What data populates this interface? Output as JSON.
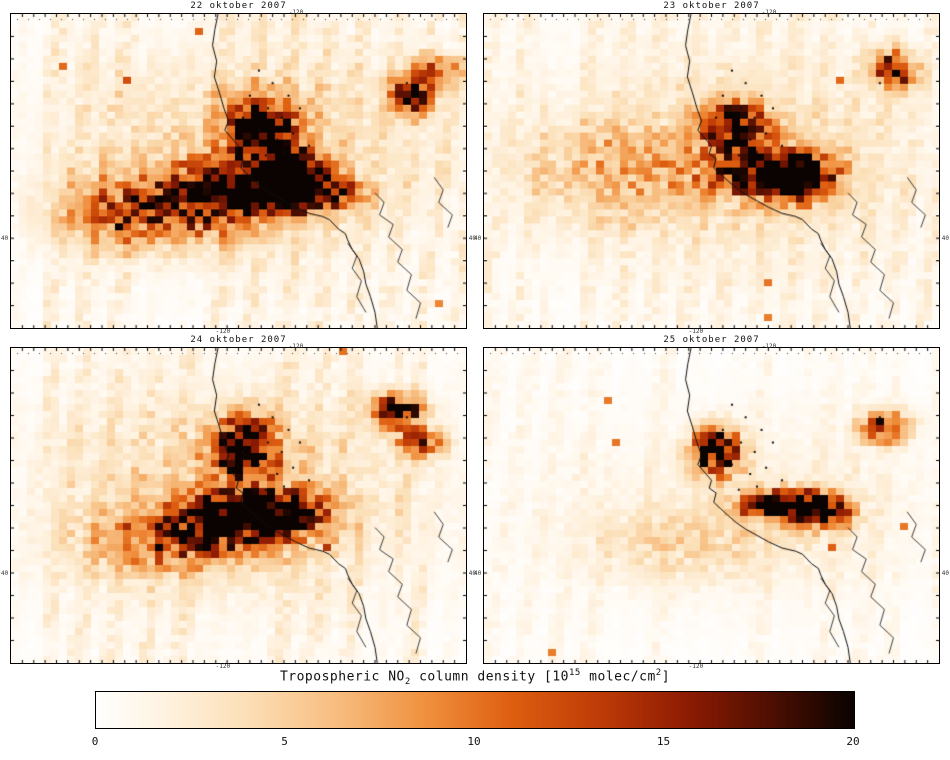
{
  "figure": {
    "panels": [
      {
        "title": "22 oktober 2007"
      },
      {
        "title": "23 oktober 2007"
      },
      {
        "title": "24 oktober 2007"
      },
      {
        "title": "25 oktober 2007"
      }
    ],
    "axis_labels": {
      "lon": "-120",
      "lat": "40"
    },
    "colorbar_label": {
      "p1": "Tropospheric NO",
      "sub1": "2",
      "p2": " column density [10",
      "sup1": "15",
      "p3": " molec/cm",
      "sup2": "2",
      "p4": "]"
    }
  },
  "chart_data": {
    "type": "heatmap",
    "title": "Tropospheric NO2 column density",
    "units": "10^15 molec/cm^2",
    "colorbar": {
      "min": 0,
      "max": 20,
      "ticks": [
        0,
        5,
        10,
        15,
        20
      ]
    },
    "colormap_stops": [
      {
        "t": 0.0,
        "color": "#ffffff"
      },
      {
        "t": 0.08,
        "color": "#fff4e4"
      },
      {
        "t": 0.2,
        "color": "#fbdfb6"
      },
      {
        "t": 0.32,
        "color": "#f7bc7e"
      },
      {
        "t": 0.44,
        "color": "#ef8e3c"
      },
      {
        "t": 0.55,
        "color": "#de5e10"
      },
      {
        "t": 0.67,
        "color": "#bc3a06"
      },
      {
        "t": 0.78,
        "color": "#8e1b03"
      },
      {
        "t": 0.88,
        "color": "#551002"
      },
      {
        "t": 0.95,
        "color": "#2a0801"
      },
      {
        "t": 1.0,
        "color": "#0a0301"
      }
    ],
    "panels": [
      {
        "date": "22 oktober 2007",
        "seed": 11,
        "bg": 1.1,
        "plumes": [
          {
            "x": 0.555,
            "y": 0.36,
            "sx": 0.045,
            "sy": 0.06,
            "peak": 24
          },
          {
            "x": 0.6,
            "y": 0.5,
            "sx": 0.05,
            "sy": 0.05,
            "peak": 22
          },
          {
            "x": 0.64,
            "y": 0.57,
            "sx": 0.07,
            "sy": 0.035,
            "peak": 26
          },
          {
            "x": 0.5,
            "y": 0.55,
            "sx": 0.09,
            "sy": 0.06,
            "peak": 14
          },
          {
            "x": 0.38,
            "y": 0.6,
            "sx": 0.13,
            "sy": 0.075,
            "peak": 9
          },
          {
            "x": 0.27,
            "y": 0.65,
            "sx": 0.12,
            "sy": 0.07,
            "peak": 6
          },
          {
            "x": 0.88,
            "y": 0.26,
            "sx": 0.03,
            "sy": 0.035,
            "peak": 20
          },
          {
            "x": 0.93,
            "y": 0.18,
            "sx": 0.04,
            "sy": 0.03,
            "peak": 10
          },
          {
            "x": 0.52,
            "y": 0.42,
            "sx": 0.25,
            "sy": 0.2,
            "peak": 4
          }
        ]
      },
      {
        "date": "23 oktober 2007",
        "seed": 23,
        "bg": 0.85,
        "plumes": [
          {
            "x": 0.55,
            "y": 0.36,
            "sx": 0.045,
            "sy": 0.05,
            "peak": 20
          },
          {
            "x": 0.68,
            "y": 0.52,
            "sx": 0.055,
            "sy": 0.045,
            "peak": 26
          },
          {
            "x": 0.61,
            "y": 0.5,
            "sx": 0.08,
            "sy": 0.05,
            "peak": 14
          },
          {
            "x": 0.3,
            "y": 0.5,
            "sx": 0.15,
            "sy": 0.1,
            "peak": 4.5
          },
          {
            "x": 0.9,
            "y": 0.18,
            "sx": 0.03,
            "sy": 0.04,
            "peak": 18
          },
          {
            "x": 0.55,
            "y": 0.45,
            "sx": 0.28,
            "sy": 0.22,
            "peak": 3
          }
        ]
      },
      {
        "date": "24 oktober 2007",
        "seed": 37,
        "bg": 1.0,
        "plumes": [
          {
            "x": 0.51,
            "y": 0.32,
            "sx": 0.045,
            "sy": 0.065,
            "peak": 24
          },
          {
            "x": 0.56,
            "y": 0.52,
            "sx": 0.085,
            "sy": 0.045,
            "peak": 25
          },
          {
            "x": 0.45,
            "y": 0.57,
            "sx": 0.1,
            "sy": 0.06,
            "peak": 12
          },
          {
            "x": 0.33,
            "y": 0.62,
            "sx": 0.12,
            "sy": 0.07,
            "peak": 6
          },
          {
            "x": 0.85,
            "y": 0.2,
            "sx": 0.035,
            "sy": 0.035,
            "peak": 20
          },
          {
            "x": 0.9,
            "y": 0.3,
            "sx": 0.035,
            "sy": 0.03,
            "peak": 12
          },
          {
            "x": 0.5,
            "y": 0.45,
            "sx": 0.28,
            "sy": 0.22,
            "peak": 3.5
          }
        ]
      },
      {
        "date": "25 oktober 2007",
        "seed": 53,
        "bg": 0.55,
        "plumes": [
          {
            "x": 0.51,
            "y": 0.33,
            "sx": 0.035,
            "sy": 0.05,
            "peak": 22
          },
          {
            "x": 0.66,
            "y": 0.5,
            "sx": 0.06,
            "sy": 0.03,
            "peak": 24
          },
          {
            "x": 0.74,
            "y": 0.52,
            "sx": 0.045,
            "sy": 0.035,
            "peak": 16
          },
          {
            "x": 0.45,
            "y": 0.62,
            "sx": 0.15,
            "sy": 0.08,
            "peak": 3
          },
          {
            "x": 0.88,
            "y": 0.25,
            "sx": 0.035,
            "sy": 0.035,
            "peak": 14
          },
          {
            "x": 0.6,
            "y": 0.5,
            "sx": 0.28,
            "sy": 0.2,
            "peak": 1.5
          }
        ]
      }
    ],
    "map_outline": {
      "coastline": [
        [
          0.455,
          0.0
        ],
        [
          0.448,
          0.05
        ],
        [
          0.443,
          0.1
        ],
        [
          0.452,
          0.15
        ],
        [
          0.447,
          0.2
        ],
        [
          0.458,
          0.25
        ],
        [
          0.468,
          0.3
        ],
        [
          0.478,
          0.34
        ],
        [
          0.47,
          0.37
        ],
        [
          0.488,
          0.4
        ],
        [
          0.5,
          0.42
        ],
        [
          0.495,
          0.445
        ],
        [
          0.51,
          0.46
        ],
        [
          0.505,
          0.49
        ],
        [
          0.52,
          0.51
        ],
        [
          0.535,
          0.53
        ],
        [
          0.555,
          0.555
        ],
        [
          0.575,
          0.575
        ],
        [
          0.6,
          0.595
        ],
        [
          0.625,
          0.615
        ],
        [
          0.64,
          0.625
        ],
        [
          0.655,
          0.635
        ],
        [
          0.67,
          0.64
        ],
        [
          0.685,
          0.645
        ],
        [
          0.7,
          0.655
        ],
        [
          0.71,
          0.67
        ],
        [
          0.72,
          0.685
        ],
        [
          0.735,
          0.7
        ],
        [
          0.74,
          0.72
        ],
        [
          0.75,
          0.75
        ],
        [
          0.765,
          0.78
        ],
        [
          0.775,
          0.82
        ],
        [
          0.78,
          0.86
        ],
        [
          0.79,
          0.9
        ],
        [
          0.8,
          0.95
        ],
        [
          0.805,
          1.0
        ]
      ],
      "rivers": [
        [
          [
            0.8,
            0.57
          ],
          [
            0.82,
            0.6
          ],
          [
            0.81,
            0.64
          ],
          [
            0.84,
            0.67
          ],
          [
            0.83,
            0.71
          ],
          [
            0.86,
            0.75
          ],
          [
            0.85,
            0.79
          ],
          [
            0.88,
            0.83
          ],
          [
            0.87,
            0.88
          ],
          [
            0.9,
            0.92
          ],
          [
            0.89,
            0.97
          ]
        ],
        [
          [
            0.93,
            0.52
          ],
          [
            0.95,
            0.56
          ],
          [
            0.94,
            0.6
          ],
          [
            0.97,
            0.64
          ],
          [
            0.96,
            0.68
          ]
        ],
        [
          [
            0.74,
            0.73
          ],
          [
            0.76,
            0.77
          ],
          [
            0.75,
            0.81
          ],
          [
            0.77,
            0.85
          ],
          [
            0.76,
            0.9
          ],
          [
            0.78,
            0.95
          ]
        ]
      ],
      "lakes": [
        [
          0.545,
          0.18
        ],
        [
          0.575,
          0.22
        ],
        [
          0.61,
          0.26
        ],
        [
          0.565,
          0.3
        ],
        [
          0.525,
          0.26
        ],
        [
          0.595,
          0.33
        ],
        [
          0.635,
          0.3
        ],
        [
          0.545,
          0.37
        ],
        [
          0.585,
          0.4
        ],
        [
          0.62,
          0.38
        ],
        [
          0.655,
          0.42
        ],
        [
          0.87,
          0.22
        ],
        [
          0.51,
          0.33
        ],
        [
          0.56,
          0.45
        ],
        [
          0.6,
          0.44
        ]
      ]
    }
  }
}
